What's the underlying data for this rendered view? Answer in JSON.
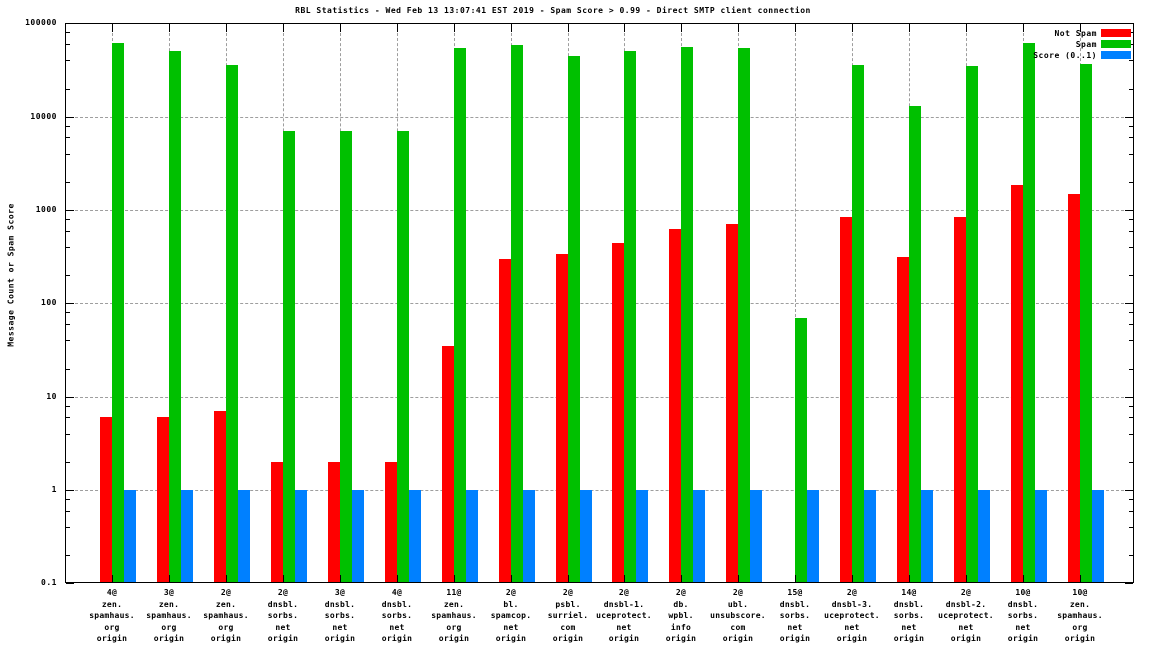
{
  "title": "RBL Statistics - Wed Feb 13 13:07:41 EST 2019 - Spam Score > 0.99 - Direct SMTP client connection",
  "y_axis": {
    "label": "Message Count or Spam Score",
    "ticks": [
      {
        "label": "100000",
        "value": 100000
      },
      {
        "label": "10000",
        "value": 10000
      },
      {
        "label": "1000",
        "value": 1000
      },
      {
        "label": "100",
        "value": 100
      },
      {
        "label": "10",
        "value": 10
      },
      {
        "label": "1",
        "value": 1
      },
      {
        "label": "0.1",
        "value": 0.1
      }
    ]
  },
  "legend": [
    {
      "label": "Not Spam",
      "color": "#ff0000"
    },
    {
      "label": "Spam",
      "color": "#00c000"
    },
    {
      "label": "Score (0..1)",
      "color": "#0080ff"
    }
  ],
  "colors": {
    "not_spam": "#ff0000",
    "spam": "#00c000",
    "score": "#0080ff",
    "grid": "#9e9e9e",
    "border": "#000000",
    "background": "#ffffff"
  },
  "chart_data": {
    "type": "bar",
    "title": "RBL Statistics - Wed Feb 13 13:07:41 EST 2019 - Spam Score > 0.99 - Direct SMTP client connection",
    "xlabel": "",
    "ylabel": "Message Count or Spam Score",
    "yscale": "log",
    "ylim": [
      0.1,
      100000
    ],
    "grid": true,
    "legend_position": "top-right",
    "categories": [
      [
        "4@",
        "zen.",
        "spamhaus.",
        "org",
        "origin"
      ],
      [
        "3@",
        "zen.",
        "spamhaus.",
        "org",
        "origin"
      ],
      [
        "2@",
        "zen.",
        "spamhaus.",
        "org",
        "origin"
      ],
      [
        "2@",
        "dnsbl.",
        "sorbs.",
        "net",
        "origin"
      ],
      [
        "3@",
        "dnsbl.",
        "sorbs.",
        "net",
        "origin"
      ],
      [
        "4@",
        "dnsbl.",
        "sorbs.",
        "net",
        "origin"
      ],
      [
        "11@",
        "zen.",
        "spamhaus.",
        "org",
        "origin"
      ],
      [
        "2@",
        "bl.",
        "spamcop.",
        "net",
        "origin"
      ],
      [
        "2@",
        "psbl.",
        "surriel.",
        "com",
        "origin"
      ],
      [
        "2@",
        "dnsbl-1.",
        "uceprotect.",
        "net",
        "origin"
      ],
      [
        "2@",
        "db.",
        "wpbl.",
        "info",
        "origin"
      ],
      [
        "2@",
        "ubl.",
        "unsubscore.",
        "com",
        "origin"
      ],
      [
        "15@",
        "dnsbl.",
        "sorbs.",
        "net",
        "origin"
      ],
      [
        "2@",
        "dnsbl-3.",
        "uceprotect.",
        "net",
        "origin"
      ],
      [
        "14@",
        "dnsbl.",
        "sorbs.",
        "net",
        "origin"
      ],
      [
        "2@",
        "dnsbl-2.",
        "uceprotect.",
        "net",
        "origin"
      ],
      [
        "10@",
        "dnsbl.",
        "sorbs.",
        "net",
        "origin"
      ],
      [
        "10@",
        "zen.",
        "spamhaus.",
        "org",
        "origin"
      ]
    ],
    "series": [
      {
        "name": "Not Spam",
        "color": "#ff0000",
        "values": [
          6,
          6,
          7,
          2,
          2,
          2,
          35,
          300,
          335,
          440,
          620,
          700,
          null,
          840,
          315,
          850,
          1850,
          1480
        ]
      },
      {
        "name": "Spam",
        "color": "#00c000",
        "values": [
          62000,
          50000,
          36000,
          7000,
          7000,
          7000,
          55000,
          58000,
          45000,
          50000,
          56000,
          55000,
          70,
          36000,
          13000,
          35000,
          61000,
          37000
        ]
      },
      {
        "name": "Score (0..1)",
        "color": "#0080ff",
        "values": [
          1,
          1,
          1,
          1,
          1,
          1,
          1,
          1,
          1,
          1,
          1,
          1,
          1,
          1,
          1,
          1,
          1,
          1
        ]
      }
    ]
  }
}
